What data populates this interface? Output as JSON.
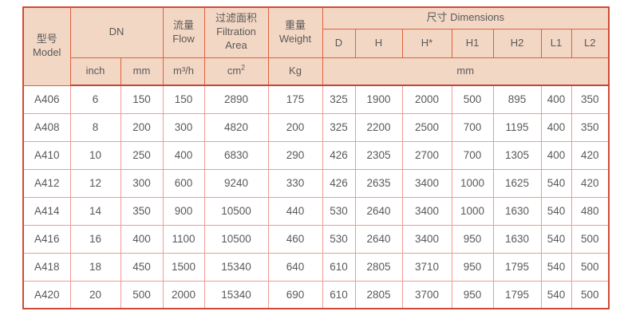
{
  "table": {
    "colors": {
      "header_bg": "#f3d7c5",
      "header_border": "#e0603c",
      "outer_border": "#cf4a36",
      "grid_border": "#f09b95",
      "text": "#595959"
    },
    "header": {
      "model_zh": "型号",
      "model_en": "Model",
      "dn": "DN",
      "flow_zh": "流量",
      "flow_en": "Flow",
      "filtration_zh": "过滤面积",
      "filtration_en": "Filtration Area",
      "weight_zh": "重量",
      "weight_en": "Weight",
      "dimensions": "尺寸 Dimensions",
      "dim_cols": [
        "D",
        "H",
        "H*",
        "H1",
        "H2",
        "L1",
        "L2"
      ],
      "units": {
        "inch": "inch",
        "mm": "mm",
        "flow": "m³/h",
        "area_base": "cm",
        "area_exp": "2",
        "weight": "Kg",
        "dims_mm": "mm"
      }
    },
    "body": [
      [
        "A406",
        "6",
        "150",
        "150",
        "2890",
        "175",
        "325",
        "1900",
        "2000",
        "500",
        "895",
        "400",
        "350"
      ],
      [
        "A408",
        "8",
        "200",
        "300",
        "4820",
        "200",
        "325",
        "2200",
        "2500",
        "700",
        "1195",
        "400",
        "350"
      ],
      [
        "A410",
        "10",
        "250",
        "400",
        "6830",
        "290",
        "426",
        "2305",
        "2700",
        "700",
        "1305",
        "400",
        "420"
      ],
      [
        "A412",
        "12",
        "300",
        "600",
        "9240",
        "330",
        "426",
        "2635",
        "3400",
        "1000",
        "1625",
        "540",
        "420"
      ],
      [
        "A414",
        "14",
        "350",
        "900",
        "10500",
        "440",
        "530",
        "2640",
        "3400",
        "1000",
        "1630",
        "540",
        "480"
      ],
      [
        "A416",
        "16",
        "400",
        "1100",
        "10500",
        "460",
        "530",
        "2640",
        "3400",
        "950",
        "1630",
        "540",
        "500"
      ],
      [
        "A418",
        "18",
        "450",
        "1500",
        "15340",
        "640",
        "610",
        "2805",
        "3710",
        "950",
        "1795",
        "540",
        "500"
      ],
      [
        "A420",
        "20",
        "500",
        "2000",
        "15340",
        "690",
        "610",
        "2805",
        "3700",
        "950",
        "1795",
        "540",
        "500"
      ]
    ]
  }
}
